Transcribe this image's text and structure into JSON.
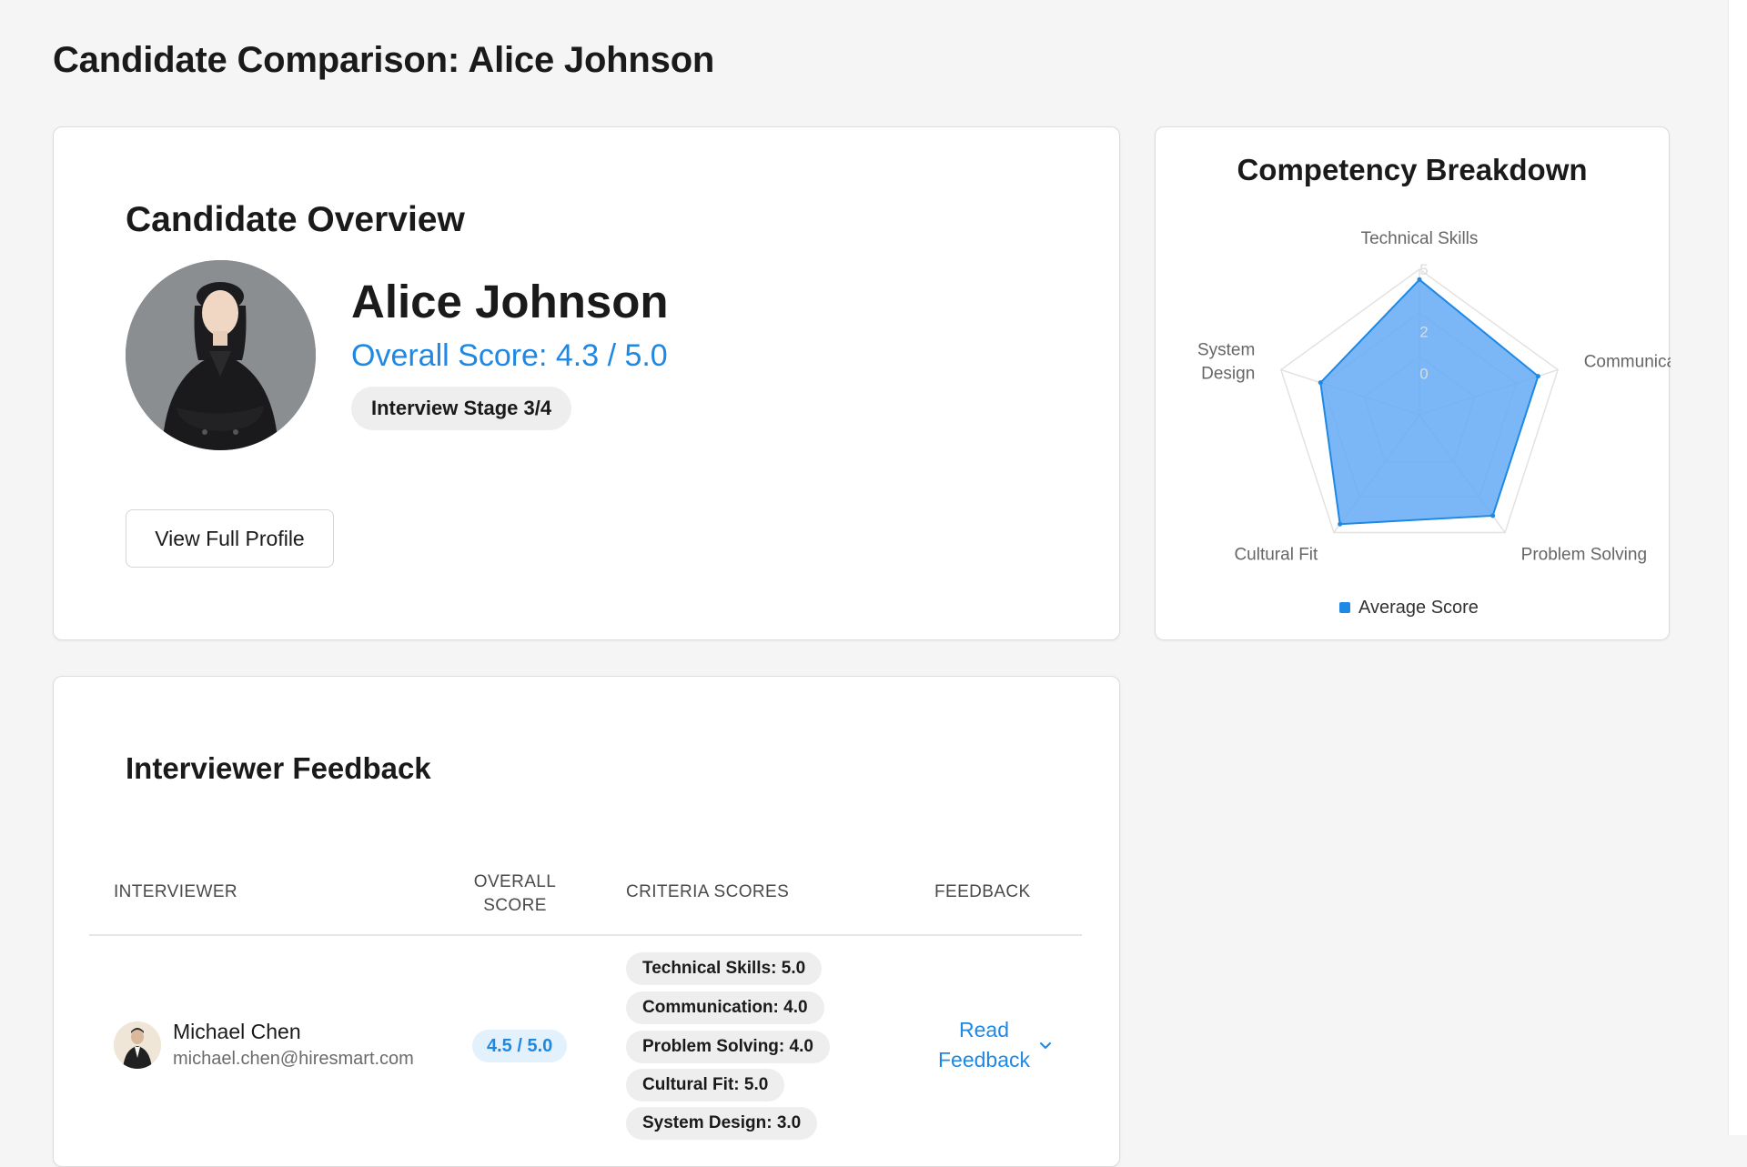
{
  "page": {
    "title": "Candidate Comparison: Alice Johnson"
  },
  "overview": {
    "heading": "Candidate Overview",
    "name": "Alice Johnson",
    "overall_score": "Overall Score: 4.3 / 5.0",
    "stage": "Interview Stage 3/4",
    "view_profile_label": "View Full Profile"
  },
  "competency": {
    "heading": "Competency Breakdown",
    "legend_label": "Average Score",
    "accent_color": "#1e88e5",
    "fill_color": "#64aaf5"
  },
  "chart_data": {
    "type": "radar",
    "title": "Competency Breakdown",
    "axes": [
      "Technical Skills",
      "Communication",
      "Problem Solving",
      "Cultural Fit",
      "System Design"
    ],
    "axis_labels": [
      [
        "Technical Skills"
      ],
      [
        "Communication"
      ],
      [
        "Problem Solving"
      ],
      [
        "Cultural Fit"
      ],
      [
        "System",
        "Design"
      ]
    ],
    "scale_ticks": [
      "5",
      "2",
      "0"
    ],
    "range": [
      -2,
      5
    ],
    "series": [
      {
        "name": "Average Score",
        "values": [
          4.5,
          4.0,
          4.0,
          4.5,
          3.0
        ]
      }
    ],
    "legend_position": "bottom"
  },
  "feedback": {
    "heading": "Interviewer Feedback",
    "columns": {
      "interviewer": "Interviewer",
      "overall_line1": "Overall",
      "overall_line2": "Score",
      "criteria": "Criteria Scores",
      "feedback": "Feedback"
    },
    "rows": [
      {
        "name": "Michael Chen",
        "email": "michael.chen@hiresmart.com",
        "score": "4.5 / 5.0",
        "criteria": [
          "Technical Skills: 5.0",
          "Communication: 4.0",
          "Problem Solving: 4.0",
          "Cultural Fit: 5.0",
          "System Design: 3.0"
        ],
        "link_line1": "Read",
        "link_line2": "Feedback"
      }
    ]
  }
}
